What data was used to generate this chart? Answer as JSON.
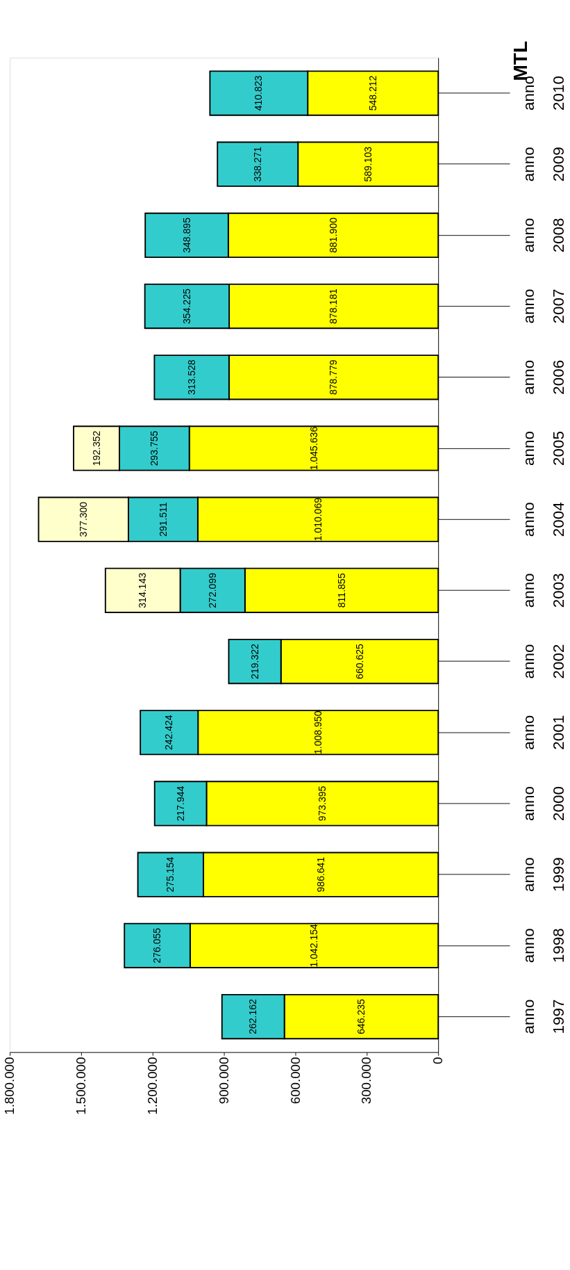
{
  "chart_data": {
    "type": "bar",
    "title": "MTL",
    "orientation": "horizontal",
    "stacked": true,
    "grid": false,
    "categories": [
      "anno 2010",
      "anno 2009",
      "anno 2008",
      "anno 2007",
      "anno 2006",
      "anno 2005",
      "anno 2004",
      "anno 2003",
      "anno 2002",
      "anno 2001",
      "anno 2000",
      "anno 1999",
      "anno 1998",
      "anno 1997"
    ],
    "xlim": [
      1800000,
      0
    ],
    "xticks": [
      {
        "value": 1800000,
        "label": "1.800.000"
      },
      {
        "value": 1500000,
        "label": "1.500.000"
      },
      {
        "value": 1200000,
        "label": "1.200.000"
      },
      {
        "value": 900000,
        "label": "900.000"
      },
      {
        "value": 600000,
        "label": "600.000"
      },
      {
        "value": 300000,
        "label": "300.000"
      },
      0
    ],
    "series": [
      {
        "color": "#ffff00",
        "values": [
          548212,
          589103,
          881900,
          878181,
          878779,
          1045636,
          1010069,
          811855,
          660625,
          1008950,
          973395,
          986641,
          1042154,
          646235
        ],
        "value_labels": [
          "548.212",
          "589.103",
          "881.900",
          "878.181",
          "878.779",
          "1.045.636",
          "1.010.069",
          "811.855",
          "660.625",
          "1.008.950",
          "973.395",
          "986.641",
          "1.042.154",
          "646.235"
        ]
      },
      {
        "color": "#33cccc",
        "values": [
          410823,
          338271,
          348895,
          354225,
          313528,
          293755,
          291511,
          272099,
          219322,
          242424,
          217944,
          275154,
          276055,
          262162
        ],
        "value_labels": [
          "410.823",
          "338.271",
          "348.895",
          "354.225",
          "313.528",
          "293.755",
          "291.511",
          "272.099",
          "219.322",
          "242.424",
          "217.944",
          "275.154",
          "276.055",
          "262.162"
        ]
      },
      {
        "color": "#ffffcc",
        "values": [
          null,
          null,
          null,
          null,
          null,
          192352,
          377300,
          314143,
          null,
          null,
          null,
          null,
          null,
          null
        ],
        "value_labels": [
          null,
          null,
          null,
          null,
          null,
          "192.352",
          "377.300",
          "314.143",
          null,
          null,
          null,
          null,
          null,
          null
        ]
      }
    ]
  }
}
